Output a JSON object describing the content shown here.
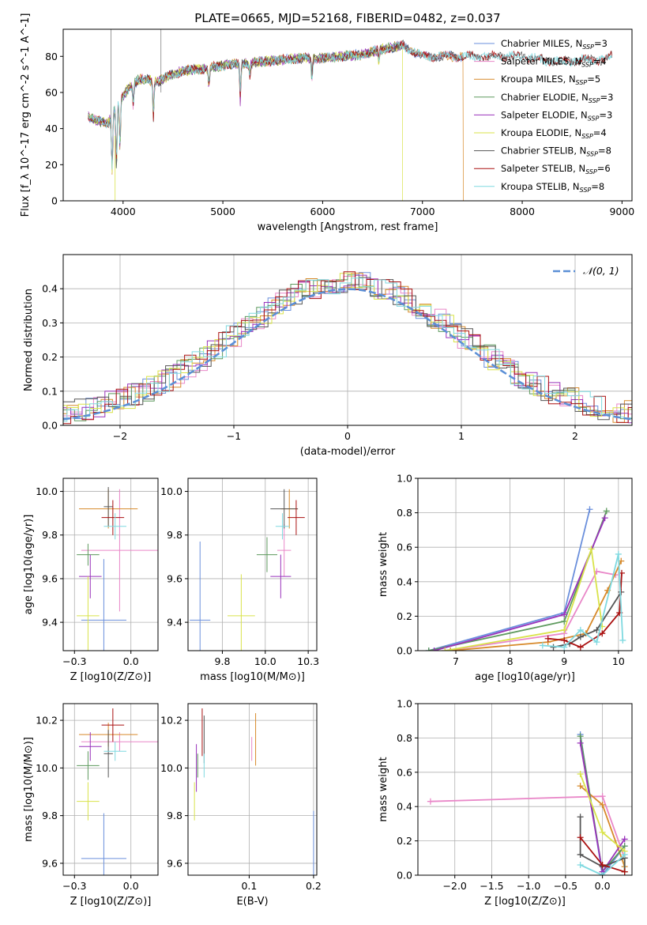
{
  "figure": {
    "title": "PLATE=0665, MJD=52168, FIBERID=0482, z=0.037"
  },
  "colors": {
    "Chabrier MILES": "#6a8fdc",
    "Salpeter MILES": "#e987c8",
    "Kroupa MILES": "#d7892a",
    "Chabrier ELODIE": "#5e9a5e",
    "Salpeter ELODIE": "#9933bb",
    "Kroupa ELODIE": "#d9e34a",
    "Chabrier STELIB": "#555555",
    "Salpeter STELIB": "#aa1111",
    "Kroupa STELIB": "#7fd9e0",
    "normal_curve": "#5b8fd6",
    "grid": "#b0b0b0"
  },
  "chart_data": [
    {
      "id": "spectrum",
      "type": "line",
      "xlabel": "wavelength [Angstrom, rest frame]",
      "ylabel": "Flux [f_λ 10^-17 erg cm^-2 s^-1 A^-1]",
      "xlim": [
        3400,
        9100
      ],
      "ylim": [
        0,
        95
      ],
      "xticks": [
        4000,
        5000,
        6000,
        7000,
        8000,
        9000
      ],
      "yticks": [
        0,
        20,
        40,
        60,
        80
      ],
      "grid": false,
      "legend_position": "upper-right",
      "legend": [
        {
          "label": "Chabrier MILES, N_SSP=3",
          "main": "Chabrier MILES, N",
          "sub": "SSP",
          "tail": "=3",
          "series": "Chabrier MILES"
        },
        {
          "label": "Salpeter MILES, N_SSP=4",
          "main": "Salpeter MILES, N",
          "sub": "SSP",
          "tail": "=4",
          "series": "Salpeter MILES"
        },
        {
          "label": "Kroupa MILES, N_SSP=5",
          "main": "Kroupa MILES, N",
          "sub": "SSP",
          "tail": "=5",
          "series": "Kroupa MILES"
        },
        {
          "label": "Chabrier ELODIE, N_SSP=3",
          "main": "Chabrier ELODIE, N",
          "sub": "SSP",
          "tail": "=3",
          "series": "Chabrier ELODIE"
        },
        {
          "label": "Salpeter ELODIE, N_SSP=3",
          "main": "Salpeter ELODIE, N",
          "sub": "SSP",
          "tail": "=3",
          "series": "Salpeter ELODIE"
        },
        {
          "label": "Kroupa ELODIE, N_SSP=4",
          "main": "Kroupa ELODIE, N",
          "sub": "SSP",
          "tail": "=4",
          "series": "Kroupa ELODIE"
        },
        {
          "label": "Chabrier STELIB, N_SSP=8",
          "main": "Chabrier STELIB, N",
          "sub": "SSP",
          "tail": "=8",
          "series": "Chabrier STELIB"
        },
        {
          "label": "Salpeter STELIB, N_SSP=6",
          "main": "Salpeter STELIB, N",
          "sub": "SSP",
          "tail": "=6",
          "series": "Salpeter STELIB"
        },
        {
          "label": "Kroupa STELIB, N_SSP=8",
          "main": "Kroupa STELIB, N",
          "sub": "SSP",
          "tail": "=8",
          "series": "Kroupa STELIB"
        }
      ],
      "continuum": {
        "x": [
          3650,
          3750,
          3850,
          3950,
          4050,
          4150,
          4250,
          4350,
          4450,
          4600,
          4800,
          5000,
          5200,
          5400,
          5600,
          5800,
          6000,
          6200,
          6400,
          6600,
          6800,
          7000,
          7200,
          7400,
          7600,
          7800,
          8000,
          8200,
          8400,
          8600,
          8800,
          8900
        ],
        "y": [
          47,
          44,
          43,
          54,
          62,
          67,
          67,
          66,
          69,
          72,
          73,
          75,
          76,
          77,
          78,
          79,
          79,
          80,
          81,
          84,
          86,
          80,
          80,
          80,
          80,
          80,
          80,
          78,
          77,
          78,
          78,
          80
        ]
      },
      "absorption_lines": [
        {
          "x": 3890,
          "depth": 28
        },
        {
          "x": 3934,
          "depth": 30
        },
        {
          "x": 3969,
          "depth": 25
        },
        {
          "x": 4102,
          "depth": 10
        },
        {
          "x": 4304,
          "depth": 18
        },
        {
          "x": 4861,
          "depth": 10
        },
        {
          "x": 5175,
          "depth": 18
        },
        {
          "x": 5270,
          "depth": 6
        },
        {
          "x": 5893,
          "depth": 10
        },
        {
          "x": 6563,
          "depth": 6
        }
      ],
      "drops": [
        {
          "series": "Kroupa ELODIE",
          "x": 3920
        },
        {
          "series": "Kroupa ELODIE",
          "x": 6800
        },
        {
          "series": "Kroupa MILES",
          "x": 7410
        }
      ],
      "series_extent": {
        "Chabrier MILES": [
          3650,
          7400
        ],
        "Salpeter MILES": [
          3650,
          7400
        ],
        "Kroupa MILES": [
          3650,
          7410
        ],
        "Chabrier ELODIE": [
          3650,
          6800
        ],
        "Salpeter ELODIE": [
          3650,
          6800
        ],
        "Kroupa ELODIE": [
          3650,
          6800
        ],
        "Chabrier STELIB": [
          3650,
          8900
        ],
        "Salpeter STELIB": [
          3650,
          8900
        ],
        "Kroupa STELIB": [
          3650,
          8900
        ]
      }
    },
    {
      "id": "residuals",
      "type": "line",
      "xlabel": "(data-model)/error",
      "ylabel": "Normed distribution",
      "xlim": [
        -2.5,
        2.5
      ],
      "ylim": [
        0,
        0.5
      ],
      "xticks": [
        -2,
        -1,
        0,
        1,
        2
      ],
      "yticks": [
        0.0,
        0.1,
        0.2,
        0.3,
        0.4
      ],
      "grid": true,
      "legend_position": "upper-right",
      "legend": [
        {
          "label": "𝒩(0, 1)"
        }
      ],
      "bin_width": 0.1
    },
    {
      "id": "age-vs-Z",
      "type": "scatter",
      "xlabel": "Z [log10(Z/Z⊙)]",
      "ylabel": "age [log10(age/yr)]",
      "xlim": [
        -0.3,
        0.12
      ],
      "ylim": [
        9.27,
        10.06
      ],
      "xticks": [
        -0.25,
        0.0
      ],
      "yticks": [
        9.4,
        9.6,
        9.8,
        10.0
      ],
      "grid": true,
      "points": [
        {
          "series": "Chabrier MILES",
          "x": -0.12,
          "xerr": 0.1,
          "y": 9.41,
          "yerr": 0.28
        },
        {
          "series": "Salpeter MILES",
          "x": -0.05,
          "xerr": 0.17,
          "y": 9.73,
          "yerr": 0.28
        },
        {
          "series": "Kroupa MILES",
          "x": -0.1,
          "xerr": 0.13,
          "y": 9.92,
          "yerr": 0.09
        },
        {
          "series": "Chabrier ELODIE",
          "x": -0.19,
          "xerr": 0.05,
          "y": 9.71,
          "yerr": 0.05
        },
        {
          "series": "Salpeter ELODIE",
          "x": -0.18,
          "xerr": 0.05,
          "y": 9.61,
          "yerr": 0.1
        },
        {
          "series": "Kroupa ELODIE",
          "x": -0.19,
          "xerr": 0.05,
          "y": 9.43,
          "yerr": 0.18
        },
        {
          "series": "Chabrier STELIB",
          "x": -0.1,
          "xerr": 0.02,
          "y": 9.93,
          "yerr": 0.09
        },
        {
          "series": "Salpeter STELIB",
          "x": -0.08,
          "xerr": 0.05,
          "y": 9.88,
          "yerr": 0.08
        },
        {
          "series": "Kroupa STELIB",
          "x": -0.07,
          "xerr": 0.05,
          "y": 9.84,
          "yerr": 0.06
        }
      ]
    },
    {
      "id": "age-vs-mass",
      "type": "scatter",
      "xlabel": "mass [log10(M/M⊙)]",
      "ylabel": "",
      "xlim": [
        9.55,
        10.3
      ],
      "ylim": [
        9.27,
        10.06
      ],
      "xticks": [
        9.75,
        10.0,
        10.25
      ],
      "yticks": [
        9.4,
        9.6,
        9.8,
        10.0
      ],
      "grid": true,
      "points": [
        {
          "series": "Chabrier MILES",
          "x": 9.62,
          "xerr": 0.06,
          "y": 9.41,
          "yerr": 0.36
        },
        {
          "series": "Salpeter MILES",
          "x": 10.11,
          "xerr": 0.04,
          "y": 9.73,
          "yerr": 0.12
        },
        {
          "series": "Kroupa MILES",
          "x": 10.14,
          "xerr": 0.05,
          "y": 9.92,
          "yerr": 0.09
        },
        {
          "series": "Chabrier ELODIE",
          "x": 10.01,
          "xerr": 0.06,
          "y": 9.71,
          "yerr": 0.08
        },
        {
          "series": "Salpeter ELODIE",
          "x": 10.09,
          "xerr": 0.06,
          "y": 9.61,
          "yerr": 0.1
        },
        {
          "series": "Kroupa ELODIE",
          "x": 9.86,
          "xerr": 0.08,
          "y": 9.43,
          "yerr": 0.19
        },
        {
          "series": "Chabrier STELIB",
          "x": 10.11,
          "xerr": 0.08,
          "y": 9.92,
          "yerr": 0.09
        },
        {
          "series": "Salpeter STELIB",
          "x": 10.18,
          "xerr": 0.05,
          "y": 9.88,
          "yerr": 0.08
        },
        {
          "series": "Kroupa STELIB",
          "x": 10.1,
          "xerr": 0.04,
          "y": 9.84,
          "yerr": 0.06
        }
      ]
    },
    {
      "id": "massweight-vs-age",
      "type": "line",
      "xlabel": "age [log10(age/yr)]",
      "ylabel": "mass weight",
      "xlim": [
        6.3,
        10.25
      ],
      "ylim": [
        0,
        1
      ],
      "xticks": [
        7,
        8,
        9,
        10
      ],
      "yticks": [
        0.0,
        0.2,
        0.4,
        0.6,
        0.8,
        1.0
      ],
      "grid": true,
      "series": [
        {
          "name": "Chabrier MILES",
          "x": [
            6.5,
            9.0,
            9.47
          ],
          "y": [
            0.0,
            0.22,
            0.82
          ]
        },
        {
          "name": "Salpeter MILES",
          "x": [
            6.8,
            9.0,
            9.6,
            9.95
          ],
          "y": [
            0.0,
            0.1,
            0.46,
            0.44
          ]
        },
        {
          "name": "Kroupa MILES",
          "x": [
            6.9,
            8.7,
            9.4,
            9.8,
            10.05
          ],
          "y": [
            0.0,
            0.05,
            0.1,
            0.35,
            0.52
          ]
        },
        {
          "name": "Chabrier ELODIE",
          "x": [
            6.5,
            9.0,
            9.78
          ],
          "y": [
            0.0,
            0.17,
            0.81
          ]
        },
        {
          "name": "Salpeter ELODIE",
          "x": [
            6.6,
            9.0,
            9.75
          ],
          "y": [
            0.0,
            0.21,
            0.77
          ]
        },
        {
          "name": "Kroupa ELODIE",
          "x": [
            6.8,
            9.0,
            9.5,
            9.7
          ],
          "y": [
            0.0,
            0.12,
            0.59,
            0.14
          ]
        },
        {
          "name": "Chabrier STELIB",
          "x": [
            8.8,
            9.1,
            9.3,
            9.6,
            10.05
          ],
          "y": [
            0.02,
            0.04,
            0.08,
            0.12,
            0.34
          ]
        },
        {
          "name": "Salpeter STELIB",
          "x": [
            8.7,
            9.0,
            9.3,
            9.7,
            10.02,
            10.06
          ],
          "y": [
            0.07,
            0.06,
            0.02,
            0.1,
            0.22,
            0.45
          ]
        },
        {
          "name": "Kroupa STELIB",
          "x": [
            8.6,
            9.0,
            9.3,
            9.6,
            10.0,
            10.08
          ],
          "y": [
            0.03,
            0.02,
            0.12,
            0.05,
            0.56,
            0.06
          ]
        }
      ]
    },
    {
      "id": "mass-vs-Z",
      "type": "scatter",
      "xlabel": "Z [log10(Z/Z⊙)]",
      "ylabel": "mass [log10(M/M⊙)]",
      "xlim": [
        -0.3,
        0.12
      ],
      "ylim": [
        9.55,
        10.27
      ],
      "xticks": [
        -0.25,
        0.0
      ],
      "yticks": [
        9.6,
        9.8,
        10.0,
        10.2
      ],
      "grid": true,
      "points": [
        {
          "series": "Chabrier MILES",
          "x": -0.12,
          "xerr": 0.1,
          "y": 9.62,
          "yerr": 0.19
        },
        {
          "series": "Salpeter MILES",
          "x": -0.05,
          "xerr": 0.17,
          "y": 10.11,
          "yerr": 0.04
        },
        {
          "series": "Kroupa MILES",
          "x": -0.1,
          "xerr": 0.13,
          "y": 10.14,
          "yerr": 0.05
        },
        {
          "series": "Chabrier ELODIE",
          "x": -0.19,
          "xerr": 0.05,
          "y": 10.01,
          "yerr": 0.06
        },
        {
          "series": "Salpeter ELODIE",
          "x": -0.18,
          "xerr": 0.05,
          "y": 10.09,
          "yerr": 0.06
        },
        {
          "series": "Kroupa ELODIE",
          "x": -0.19,
          "xerr": 0.05,
          "y": 9.86,
          "yerr": 0.08
        },
        {
          "series": "Chabrier STELIB",
          "x": -0.1,
          "xerr": 0.02,
          "y": 10.06,
          "yerr": 0.1
        },
        {
          "series": "Salpeter STELIB",
          "x": -0.08,
          "xerr": 0.05,
          "y": 10.18,
          "yerr": 0.07
        },
        {
          "series": "Kroupa STELIB",
          "x": -0.07,
          "xerr": 0.05,
          "y": 10.07,
          "yerr": 0.04
        }
      ]
    },
    {
      "id": "mass-vs-ebv",
      "type": "scatter",
      "xlabel": "E(B-V)",
      "ylabel": "",
      "xlim": [
        0.005,
        0.205
      ],
      "ylim": [
        9.55,
        10.27
      ],
      "xticks": [
        0.1,
        0.2
      ],
      "yticks": [
        9.6,
        9.8,
        10.0,
        10.2
      ],
      "grid": true,
      "points": [
        {
          "series": "Chabrier MILES",
          "x": 0.2,
          "xerr": 0,
          "y": 9.62,
          "yerr": 0.2
        },
        {
          "series": "Salpeter MILES",
          "x": 0.104,
          "xerr": 0,
          "y": 10.08,
          "yerr": 0.05
        },
        {
          "series": "Kroupa MILES",
          "x": 0.11,
          "xerr": 0,
          "y": 10.12,
          "yerr": 0.11
        },
        {
          "series": "Chabrier ELODIE",
          "x": 0.02,
          "xerr": 0,
          "y": 10.01,
          "yerr": 0.05
        },
        {
          "series": "Salpeter ELODIE",
          "x": 0.018,
          "xerr": 0,
          "y": 10.0,
          "yerr": 0.1
        },
        {
          "series": "Kroupa ELODIE",
          "x": 0.015,
          "xerr": 0,
          "y": 9.86,
          "yerr": 0.08
        },
        {
          "series": "Chabrier STELIB",
          "x": 0.03,
          "xerr": 0,
          "y": 10.12,
          "yerr": 0.1
        },
        {
          "series": "Salpeter STELIB",
          "x": 0.027,
          "xerr": 0,
          "y": 10.15,
          "yerr": 0.1
        },
        {
          "series": "Kroupa STELIB",
          "x": 0.03,
          "xerr": 0,
          "y": 10.01,
          "yerr": 0.05
        }
      ]
    },
    {
      "id": "massweight-vs-Z",
      "type": "line",
      "xlabel": "Z [log10(Z/Z⊙)]",
      "ylabel": "mass weight",
      "xlim": [
        -2.5,
        0.4
      ],
      "ylim": [
        0,
        1
      ],
      "xticks": [
        -2.0,
        -1.5,
        -1.0,
        -0.5,
        0.0
      ],
      "yticks": [
        0.0,
        0.2,
        0.4,
        0.6,
        0.8,
        1.0
      ],
      "grid": true,
      "series": [
        {
          "name": "Chabrier MILES",
          "x": [
            -0.3,
            0.0,
            0.3
          ],
          "y": [
            0.82,
            0.0,
            0.17
          ]
        },
        {
          "name": "Salpeter MILES",
          "x": [
            -2.33,
            0.0,
            0.3
          ],
          "y": [
            0.43,
            0.46,
            0.1
          ]
        },
        {
          "name": "Kroupa MILES",
          "x": [
            -0.3,
            0.0,
            0.3,
            0.3
          ],
          "y": [
            0.52,
            0.41,
            0.05,
            0.02
          ]
        },
        {
          "name": "Chabrier ELODIE",
          "x": [
            -0.3,
            0.0,
            0.3
          ],
          "y": [
            0.81,
            0.02,
            0.17
          ]
        },
        {
          "name": "Salpeter ELODIE",
          "x": [
            -0.3,
            0.0,
            0.3
          ],
          "y": [
            0.77,
            0.02,
            0.21
          ]
        },
        {
          "name": "Kroupa ELODIE",
          "x": [
            -0.3,
            0.0,
            0.3,
            0.3
          ],
          "y": [
            0.59,
            0.25,
            0.14,
            0.02
          ]
        },
        {
          "name": "Chabrier STELIB",
          "x": [
            -0.3,
            -0.3,
            0.0,
            0.3,
            0.3
          ],
          "y": [
            0.34,
            0.12,
            0.05,
            0.1,
            0.02
          ]
        },
        {
          "name": "Salpeter STELIB",
          "x": [
            -0.3,
            0.0,
            0.3
          ],
          "y": [
            0.22,
            0.06,
            0.02
          ]
        },
        {
          "name": "Kroupa STELIB",
          "x": [
            -0.3,
            0.0,
            0.3
          ],
          "y": [
            0.06,
            0.0,
            0.12
          ]
        }
      ]
    }
  ]
}
